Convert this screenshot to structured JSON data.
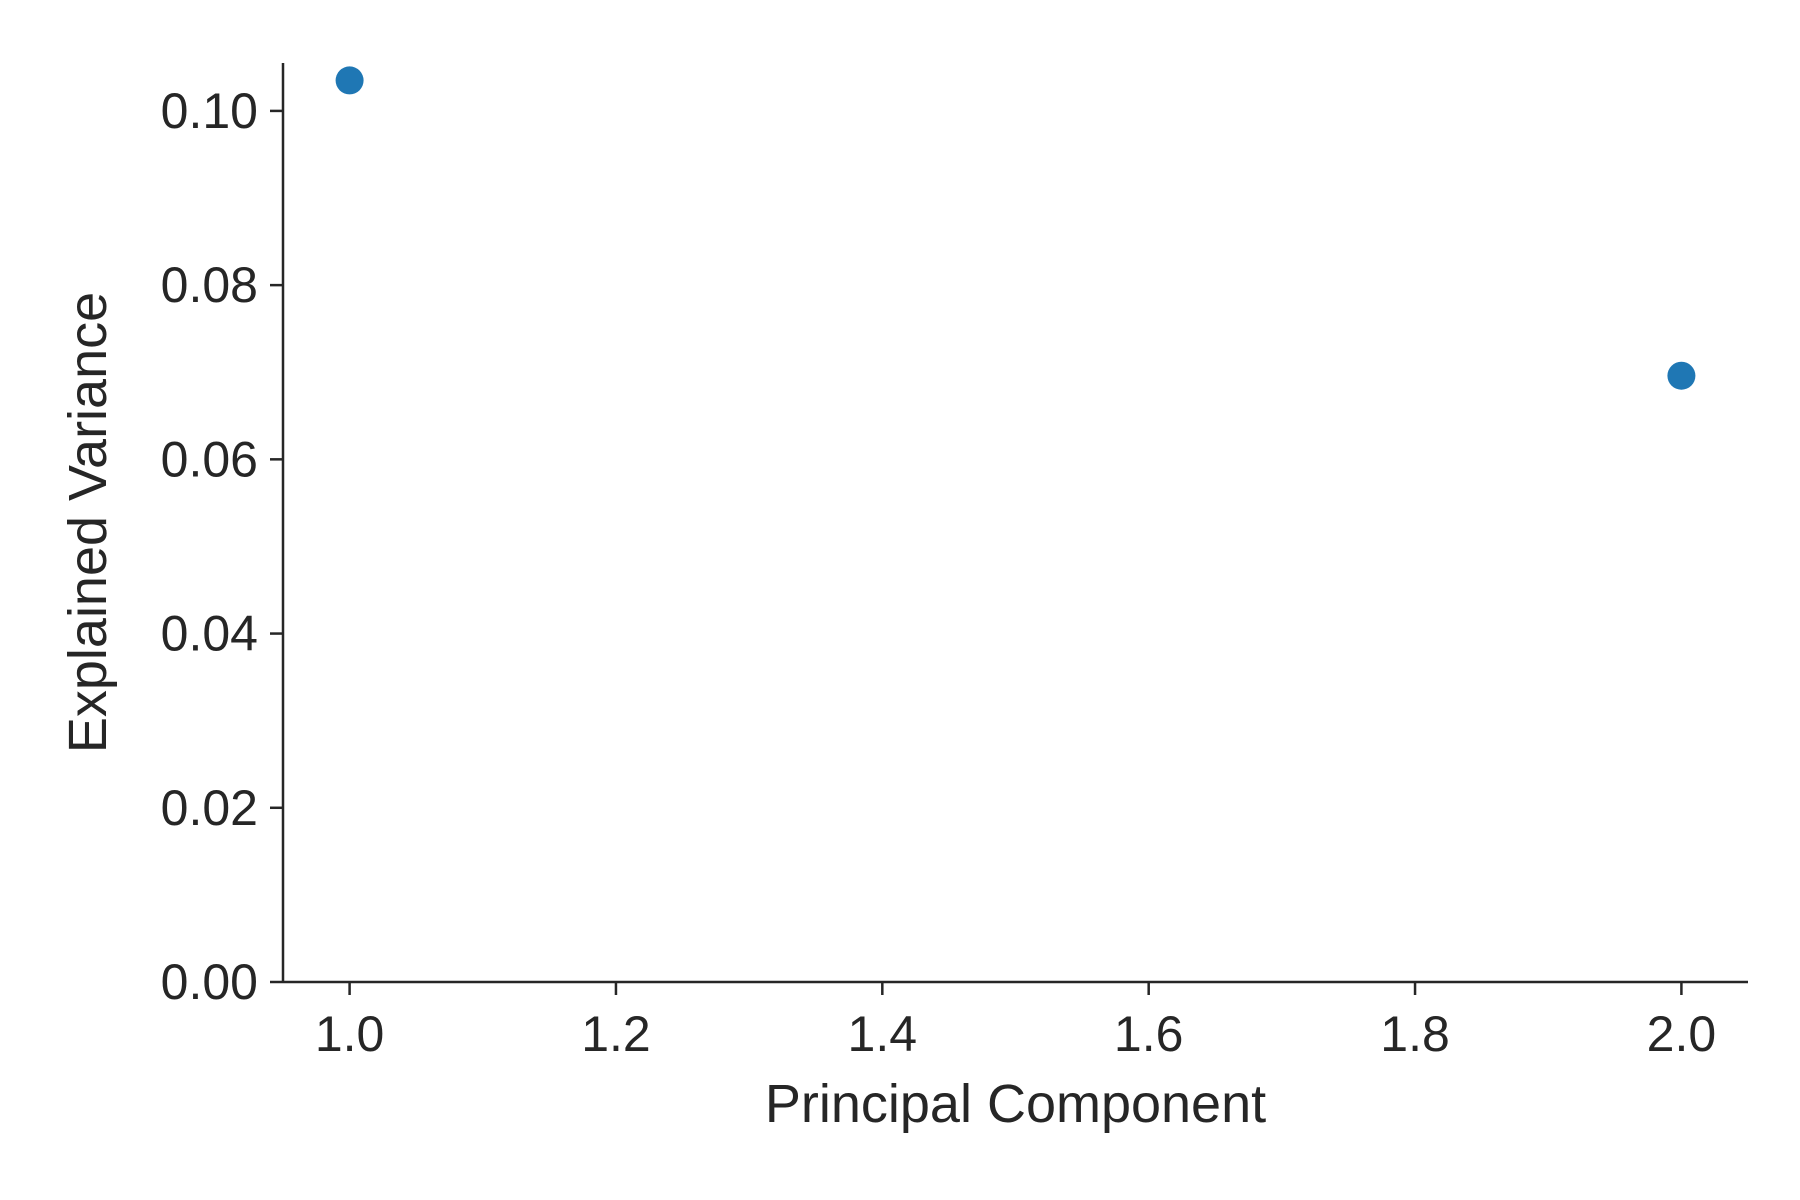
{
  "chart_data": {
    "type": "scatter",
    "title": "",
    "xlabel": "Principal Component",
    "ylabel": "Explained Variance",
    "xlim": [
      0.95,
      2.05
    ],
    "ylim": [
      0.0,
      0.1055
    ],
    "xticks": [
      1.0,
      1.2,
      1.4,
      1.6,
      1.8,
      2.0
    ],
    "xtick_labels": [
      "1.0",
      "1.2",
      "1.4",
      "1.6",
      "1.8",
      "2.0"
    ],
    "yticks": [
      0.0,
      0.02,
      0.04,
      0.06,
      0.08,
      0.1
    ],
    "ytick_labels": [
      "0.00",
      "0.02",
      "0.04",
      "0.06",
      "0.08",
      "0.10"
    ],
    "grid": false,
    "series": [
      {
        "x": [
          1.0,
          2.0
        ],
        "y": [
          0.1035,
          0.0696
        ],
        "color": "#1f77b4"
      }
    ]
  }
}
